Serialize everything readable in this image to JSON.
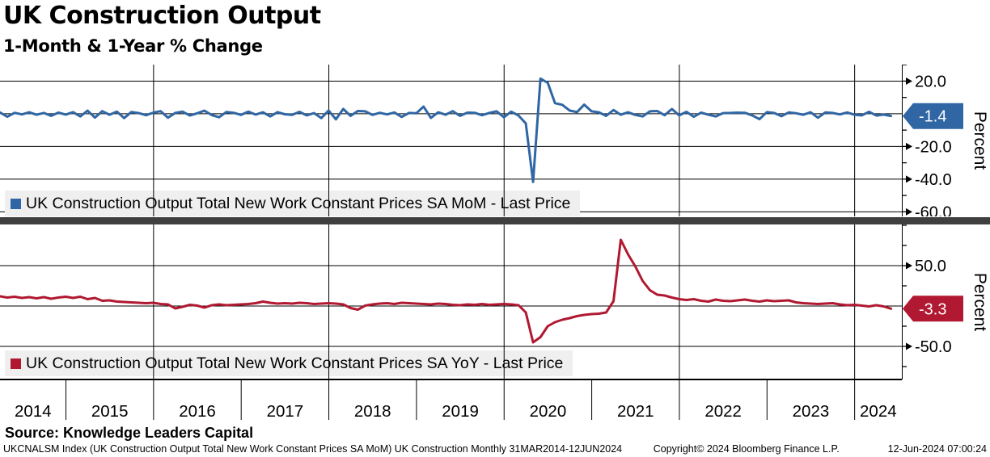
{
  "title": "UK Construction Output",
  "subtitle": "1-Month & 1-Year % Change",
  "source_line": "Source: Knowledge Leaders Capital",
  "footer": {
    "left": "UKCNALSM Index (UK Construction Output Total New Work Constant Prices SA MoM) UK Construction  Monthly 31MAR2014-12JUN2024",
    "copyright": "Copyright© 2024 Bloomberg Finance L.P.",
    "timestamp": "12-Jun-2024 07:00:24"
  },
  "colors": {
    "mom_blue": "#2f66a3",
    "yoy_red": "#b01931",
    "legend_bg": "#efefef",
    "separator_gray": "#3f3f3f",
    "grid_black": "#000000",
    "tag_text": "#ffffff"
  },
  "x_axis": {
    "years": [
      "2014",
      "2015",
      "2016",
      "2017",
      "2018",
      "2019",
      "2020",
      "2021",
      "2022",
      "2023",
      "2024"
    ],
    "range_label": "31MAR2014-12JUN2024"
  },
  "chart_data": [
    {
      "type": "line",
      "name": "mom",
      "legend": "UK Construction Output Total New Work Constant Prices SA MoM - Last Price",
      "color": "#2f66a3",
      "ylabel": "Percent",
      "last_price": "-1.4",
      "ylim": [
        -62.8,
        30.1
      ],
      "gridlines": [
        20,
        0,
        -20,
        -40,
        -60
      ],
      "major_ticks": [
        20,
        -20,
        -40,
        -60
      ],
      "tick_labels": [
        "20.0",
        "-20.0",
        "-40.0",
        "-60.0"
      ],
      "minor_ticks": [
        30,
        10,
        -10,
        -30,
        -50
      ],
      "start": "2014-03",
      "end": "2024-05",
      "frequency": "monthly",
      "values": [
        0.8,
        -1.8,
        0.6,
        -0.4,
        0.9,
        -0.6,
        0.5,
        -1.3,
        0.7,
        -0.5,
        1.0,
        -1.6,
        1.9,
        -2.3,
        1.6,
        -0.6,
        1.3,
        -2.6,
        1.1,
        0.4,
        -0.9,
        0.7,
        1.6,
        -2.4,
        0.5,
        1.3,
        -1.1,
        0.3,
        1.9,
        -0.8,
        -2.1,
        1.1,
        0.6,
        -0.7,
        1.3,
        -0.5,
        0.9,
        -1.6,
        1.0,
        -0.3,
        -0.7,
        1.2,
        -1.0,
        0.4,
        -2.6,
        2.0,
        -3.4,
        2.9,
        -1.3,
        1.7,
        1.5,
        -0.7,
        0.6,
        -0.4,
        0.8,
        -1.9,
        0.5,
        0.3,
        4.4,
        -2.5,
        0.9,
        -0.6,
        1.6,
        -1.3,
        0.7,
        0.6,
        -0.9,
        0.5,
        1.5,
        -2.1,
        1.3,
        -1.1,
        -5.9,
        -41.7,
        21.5,
        19.0,
        6.5,
        5.5,
        2.0,
        1.0,
        5.6,
        1.5,
        0.9,
        -1.3,
        2.3,
        -0.6,
        0.9,
        -0.7,
        -1.6,
        1.5,
        1.7,
        -0.9,
        2.9,
        -1.0,
        1.2,
        -1.8,
        0.7,
        -0.6,
        -1.6,
        0.4,
        0.5,
        0.7,
        0.6,
        -1.0,
        -3.3,
        1.0,
        0.5,
        -1.5,
        0.8,
        0.3,
        -0.6,
        0.9,
        -2.4,
        0.8,
        0.5,
        -0.4,
        0.8,
        -0.6,
        -1.0,
        1.2,
        -1.1,
        -0.5,
        -1.4
      ]
    },
    {
      "type": "line",
      "name": "yoy",
      "legend": "UK Construction Output Total New Work Constant Prices SA YoY - Last Price",
      "color": "#b01931",
      "ylabel": "Percent",
      "last_price": "-3.3",
      "ylim": [
        -91,
        101
      ],
      "gridlines": [
        50,
        0,
        -50
      ],
      "major_ticks": [
        50,
        -50
      ],
      "tick_labels": [
        "50.0",
        "-50.0"
      ],
      "minor_ticks": [
        100,
        75,
        25,
        -25,
        -75
      ],
      "start": "2014-03",
      "end": "2024-05",
      "frequency": "monthly",
      "values": [
        12.0,
        10.5,
        11.5,
        10.0,
        11.0,
        9.5,
        11.0,
        9.0,
        10.5,
        11.5,
        10.0,
        11.5,
        8.5,
        10.0,
        6.5,
        7.0,
        5.5,
        5.0,
        4.5,
        4.0,
        3.5,
        4.0,
        2.5,
        2.0,
        -3.0,
        -1.0,
        1.5,
        0.5,
        -2.0,
        1.0,
        2.0,
        1.0,
        1.5,
        2.0,
        2.5,
        3.5,
        5.5,
        4.0,
        3.0,
        3.5,
        3.0,
        4.0,
        3.5,
        2.5,
        3.0,
        3.5,
        3.0,
        2.0,
        -2.5,
        -4.5,
        0.5,
        2.0,
        3.0,
        3.5,
        2.5,
        4.0,
        3.5,
        3.0,
        2.5,
        2.0,
        3.0,
        2.5,
        1.5,
        1.0,
        2.0,
        1.5,
        2.5,
        1.5,
        2.0,
        2.5,
        2.0,
        1.0,
        -8.0,
        -45.0,
        -38.5,
        -25.0,
        -20.0,
        -17.0,
        -15.0,
        -12.5,
        -11.0,
        -10.0,
        -9.5,
        -8.0,
        6.0,
        82.0,
        64.0,
        49.0,
        31.0,
        19.5,
        14.0,
        13.0,
        10.5,
        8.5,
        7.5,
        8.5,
        6.5,
        5.5,
        8.0,
        6.5,
        6.0,
        7.0,
        8.0,
        6.5,
        5.5,
        7.0,
        6.0,
        6.5,
        7.0,
        4.5,
        3.5,
        3.0,
        2.5,
        3.0,
        3.5,
        2.0,
        1.0,
        1.5,
        0.5,
        -0.5,
        1.0,
        -0.5,
        -3.3
      ]
    }
  ]
}
